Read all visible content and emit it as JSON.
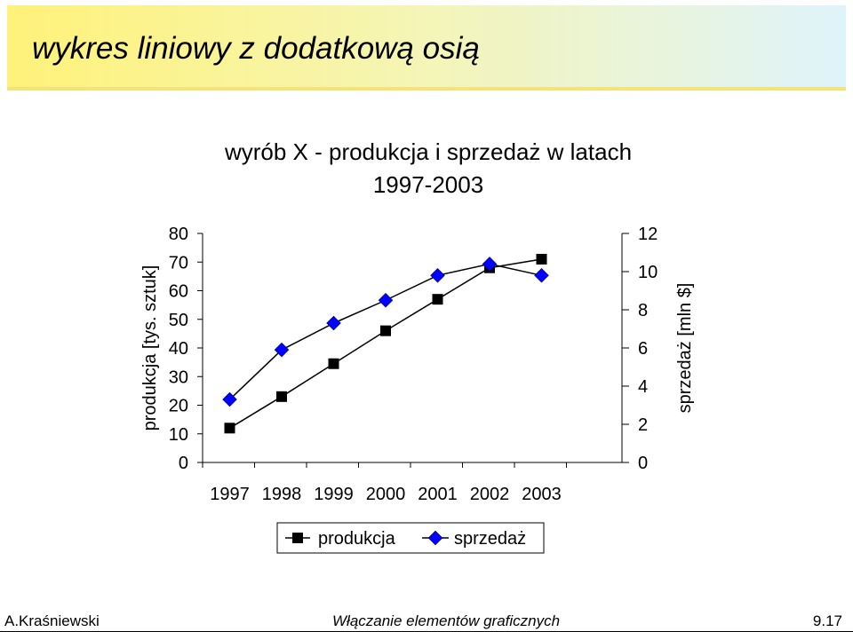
{
  "slide": {
    "title": "wykres liniowy z dodatkową osią"
  },
  "footer": {
    "author": "A.Kraśniewski",
    "course": "Włączanie elementów graficznych",
    "page": "9.17"
  },
  "chart_data": {
    "type": "line",
    "title_lines": [
      "wyrób X - produkcja i sprzedaż w latach",
      "1997-2003"
    ],
    "categories": [
      "1997",
      "1998",
      "1999",
      "2000",
      "2001",
      "2002",
      "2003"
    ],
    "ylabel_left": "produkcja [tys. sztuk]",
    "ylabel_right": "sprzedaż [mln $]",
    "ylim_left": [
      0,
      80
    ],
    "yticks_left": [
      0,
      10,
      20,
      30,
      40,
      50,
      60,
      70,
      80
    ],
    "ylim_right": [
      0,
      12
    ],
    "yticks_right": [
      0,
      2,
      4,
      6,
      8,
      10,
      12
    ],
    "grid": false,
    "legend_position": "bottom-center",
    "series": [
      {
        "name": "produkcja",
        "axis": "left",
        "marker": "square",
        "color": "#000000",
        "values": [
          12,
          23,
          34.5,
          46,
          57,
          68,
          71
        ]
      },
      {
        "name": "sprzedaż",
        "axis": "right",
        "marker": "diamond",
        "color": "#0000ff",
        "values": [
          3.3,
          5.9,
          7.3,
          8.5,
          9.8,
          10.4,
          9.8
        ]
      }
    ]
  }
}
